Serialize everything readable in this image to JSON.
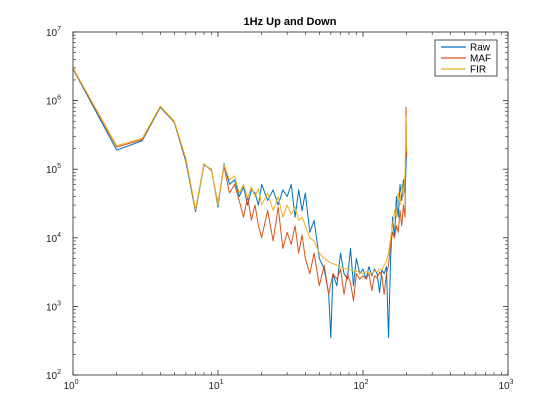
{
  "chart_data": {
    "type": "line",
    "title": "1Hz Up and Down",
    "xlabel": "",
    "ylabel": "",
    "xscale": "log",
    "yscale": "log",
    "xlim": [
      1,
      1000
    ],
    "ylim": [
      100,
      10000000
    ],
    "grid": false,
    "legend_position": "top-right",
    "x_ticks": [
      {
        "base": "10",
        "exp": "0",
        "value": 1
      },
      {
        "base": "10",
        "exp": "1",
        "value": 10
      },
      {
        "base": "10",
        "exp": "2",
        "value": 100
      },
      {
        "base": "10",
        "exp": "3",
        "value": 1000
      }
    ],
    "y_ticks": [
      {
        "base": "10",
        "exp": "2",
        "value": 100
      },
      {
        "base": "10",
        "exp": "3",
        "value": 1000
      },
      {
        "base": "10",
        "exp": "4",
        "value": 10000
      },
      {
        "base": "10",
        "exp": "5",
        "value": 100000
      },
      {
        "base": "10",
        "exp": "6",
        "value": 1000000
      },
      {
        "base": "10",
        "exp": "7",
        "value": 10000000
      }
    ],
    "series": [
      {
        "name": "Raw",
        "color": "#0072BD",
        "x": [
          1,
          2,
          3,
          4,
          5,
          6,
          7,
          8,
          9,
          10,
          11,
          12,
          13,
          14,
          15,
          16,
          17,
          18,
          19,
          20,
          22,
          24,
          26,
          28,
          30,
          32,
          34,
          36,
          38,
          40,
          43,
          46,
          50,
          54,
          58,
          60,
          62,
          66,
          70,
          74,
          78,
          82,
          86,
          90,
          95,
          100,
          105,
          110,
          115,
          120,
          125,
          130,
          135,
          140,
          145,
          150,
          155,
          160,
          165,
          170,
          175,
          180,
          185,
          190,
          195,
          200
        ],
        "y": [
          2900000,
          190000,
          260000,
          800000,
          480000,
          130000,
          24000,
          115000,
          100000,
          28000,
          120000,
          60000,
          70000,
          40000,
          55000,
          30000,
          50000,
          45000,
          30000,
          60000,
          35000,
          50000,
          30000,
          50000,
          40000,
          60000,
          20000,
          50000,
          25000,
          45000,
          12000,
          18000,
          5000,
          3500,
          1500,
          350,
          3000,
          2000,
          6000,
          3000,
          2500,
          7000,
          2000,
          5000,
          3000,
          3500,
          2500,
          3800,
          2800,
          3500,
          3000,
          1600,
          3400,
          3000,
          3800,
          350,
          5000,
          20000,
          10000,
          40000,
          20000,
          60000,
          35000,
          70000,
          45000,
          200000
        ]
      },
      {
        "name": "MAF",
        "color": "#D95319",
        "x": [
          1,
          2,
          3,
          4,
          5,
          6,
          7,
          8,
          9,
          10,
          11,
          12,
          13,
          14,
          15,
          16,
          17,
          18,
          19,
          20,
          22,
          24,
          26,
          28,
          30,
          32,
          34,
          36,
          38,
          40,
          43,
          46,
          50,
          54,
          58,
          62,
          66,
          70,
          74,
          78,
          82,
          86,
          90,
          95,
          100,
          105,
          110,
          115,
          120,
          125,
          130,
          135,
          140,
          145,
          150,
          155,
          160,
          165,
          170,
          175,
          180,
          185,
          190,
          195,
          198,
          200
        ],
        "y": [
          2950000,
          210000,
          270000,
          820000,
          490000,
          140000,
          25000,
          120000,
          95000,
          32000,
          110000,
          45000,
          60000,
          35000,
          20000,
          40000,
          18000,
          30000,
          15000,
          10000,
          25000,
          9000,
          28000,
          7000,
          12000,
          8000,
          15000,
          6000,
          11000,
          5000,
          3000,
          6000,
          2000,
          4000,
          1500,
          3000,
          2500,
          3500,
          1500,
          3000,
          2200,
          1200,
          3000,
          2500,
          2800,
          2500,
          3000,
          1700,
          2800,
          2600,
          3200,
          2800,
          1500,
          3000,
          4000,
          8000,
          12000,
          10000,
          15000,
          12000,
          25000,
          15000,
          30000,
          20000,
          800000,
          150000
        ]
      },
      {
        "name": "FIR",
        "color": "#EDB120",
        "x": [
          1,
          2,
          3,
          4,
          5,
          6,
          7,
          8,
          9,
          10,
          11,
          12,
          13,
          14,
          15,
          16,
          17,
          18,
          19,
          20,
          22,
          24,
          26,
          28,
          30,
          32,
          34,
          36,
          38,
          40,
          43,
          46,
          50,
          54,
          58,
          62,
          66,
          70,
          74,
          78,
          82,
          86,
          90,
          95,
          100,
          105,
          110,
          115,
          120,
          125,
          130,
          135,
          140,
          145,
          150,
          155,
          160,
          165,
          170,
          175,
          180,
          185,
          190,
          195,
          198,
          200
        ],
        "y": [
          3000000,
          220000,
          280000,
          830000,
          500000,
          145000,
          26000,
          118000,
          98000,
          30000,
          115000,
          70000,
          80000,
          45000,
          60000,
          38000,
          55000,
          40000,
          52000,
          30000,
          45000,
          25000,
          40000,
          20000,
          30000,
          22000,
          28000,
          18000,
          20000,
          15000,
          10000,
          9000,
          6000,
          5000,
          4500,
          4200,
          4000,
          3800,
          3500,
          3600,
          3400,
          3200,
          3300,
          3100,
          3000,
          3200,
          3100,
          3000,
          3300,
          3200,
          3500,
          3400,
          4000,
          4500,
          6000,
          10000,
          15000,
          25000,
          20000,
          45000,
          30000,
          60000,
          40000,
          90000,
          600000,
          180000
        ]
      }
    ]
  }
}
